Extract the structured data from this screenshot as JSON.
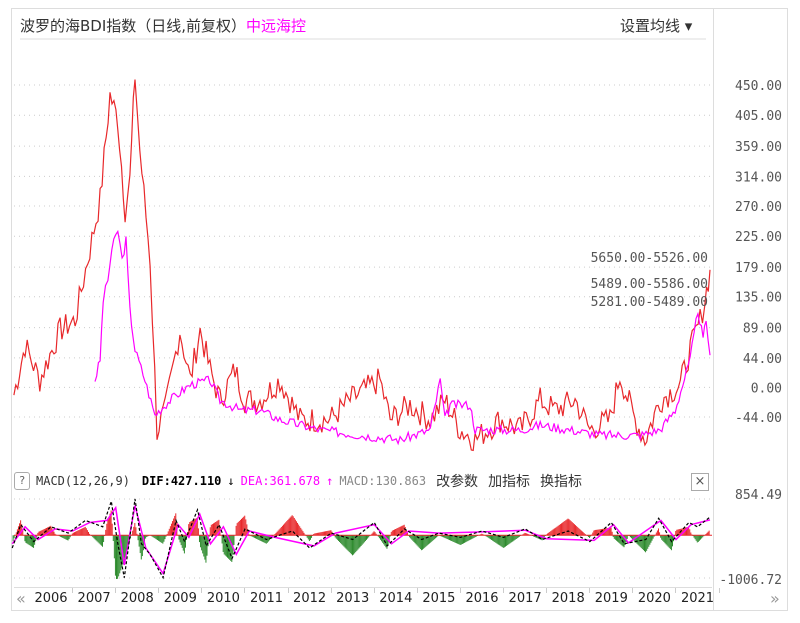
{
  "header": {
    "title": "波罗的海BDI指数（日线,前复权）",
    "stock": "中远海控",
    "settings": "设置均线 ▾"
  },
  "colors": {
    "bdi": "#e8282b",
    "stock": "#ff00ff",
    "up": "#e8282b",
    "down": "#2e8b2e",
    "negative_label": "#009900"
  },
  "chart_data": [
    {
      "type": "line",
      "title": "波罗的海BDI指数 vs 中远海控",
      "yticks": [
        "450.00",
        "405.00",
        "359.00",
        "314.00",
        "270.00",
        "225.00",
        "179.00",
        "135.00",
        "89.00",
        "44.00",
        "0.00",
        "-44.00"
      ],
      "ylim": [
        -90,
        480
      ],
      "xlim": [
        2005.1,
        2021.3
      ],
      "annotations": [
        "5650.00-5526.00",
        "5489.00-5586.00",
        "5281.00-5489.00"
      ],
      "series": [
        {
          "name": "波罗的海BDI指数",
          "points": [
            [
              2005.14,
              -11
            ],
            [
              2005.4,
              63
            ],
            [
              2005.74,
              11
            ],
            [
              2006.21,
              85
            ],
            [
              2006.56,
              100
            ],
            [
              2006.9,
              205
            ],
            [
              2007.14,
              279
            ],
            [
              2007.37,
              435
            ],
            [
              2007.55,
              398
            ],
            [
              2007.72,
              264
            ],
            [
              2007.83,
              309
            ],
            [
              2007.95,
              465
            ],
            [
              2008.06,
              353
            ],
            [
              2008.3,
              190
            ],
            [
              2008.46,
              -63
            ],
            [
              2008.65,
              -34
            ],
            [
              2008.99,
              85
            ],
            [
              2009.23,
              11
            ],
            [
              2009.46,
              85
            ],
            [
              2009.69,
              26
            ],
            [
              2009.92,
              -19
            ],
            [
              2010.27,
              26
            ],
            [
              2010.5,
              -19
            ],
            [
              2010.85,
              -19
            ],
            [
              2011.31,
              11
            ],
            [
              2011.78,
              -48
            ],
            [
              2012.47,
              -48
            ],
            [
              2012.94,
              -19
            ],
            [
              2013.63,
              11
            ],
            [
              2013.87,
              -48
            ],
            [
              2014.33,
              -26
            ],
            [
              2014.8,
              -48
            ],
            [
              2015.14,
              -19
            ],
            [
              2015.49,
              -63
            ],
            [
              2015.84,
              -78
            ],
            [
              2016.42,
              -48
            ],
            [
              2016.89,
              -63
            ],
            [
              2017.35,
              -19
            ],
            [
              2017.69,
              -34
            ],
            [
              2018.16,
              -19
            ],
            [
              2018.5,
              -63
            ],
            [
              2018.97,
              -48
            ],
            [
              2019.2,
              18
            ],
            [
              2019.55,
              -48
            ],
            [
              2019.78,
              -78
            ],
            [
              2020.13,
              -19
            ],
            [
              2020.6,
              4
            ],
            [
              2020.83,
              56
            ],
            [
              2021.06,
              100
            ],
            [
              2021.17,
              130
            ],
            [
              2021.29,
              175
            ]
          ]
        },
        {
          "name": "中远海控",
          "points": [
            [
              2007.02,
              11
            ],
            [
              2007.14,
              41
            ],
            [
              2007.21,
              130
            ],
            [
              2007.32,
              160
            ],
            [
              2007.41,
              205
            ],
            [
              2007.55,
              234
            ],
            [
              2007.65,
              190
            ],
            [
              2007.74,
              219
            ],
            [
              2007.83,
              115
            ],
            [
              2007.95,
              56
            ],
            [
              2008.18,
              11
            ],
            [
              2008.41,
              -41
            ],
            [
              2008.76,
              -19
            ],
            [
              2009.23,
              4
            ],
            [
              2009.69,
              11
            ],
            [
              2009.92,
              -19
            ],
            [
              2010.39,
              -34
            ],
            [
              2010.85,
              -34
            ],
            [
              2011.31,
              -48
            ],
            [
              2012.24,
              -63
            ],
            [
              2013.17,
              -71
            ],
            [
              2014.1,
              -78
            ],
            [
              2014.8,
              -63
            ],
            [
              2015.03,
              11
            ],
            [
              2015.14,
              -48
            ],
            [
              2015.26,
              -26
            ],
            [
              2015.72,
              -26
            ],
            [
              2015.84,
              -63
            ],
            [
              2016.89,
              -63
            ],
            [
              2017.35,
              -56
            ],
            [
              2018.04,
              -63
            ],
            [
              2018.74,
              -71
            ],
            [
              2019.67,
              -71
            ],
            [
              2020.13,
              -63
            ],
            [
              2020.48,
              -34
            ],
            [
              2020.83,
              41
            ],
            [
              2021.01,
              115
            ],
            [
              2021.13,
              71
            ],
            [
              2021.2,
              100
            ],
            [
              2021.29,
              48
            ]
          ]
        }
      ]
    },
    {
      "type": "line",
      "title": "MACD(12,26,9)",
      "yticks": [
        "854.49",
        "-1006.72"
      ],
      "ylim": [
        -1006.72,
        854.49
      ],
      "series": [
        {
          "name": "DIF",
          "points": [
            [
              2005.1,
              -300
            ],
            [
              2005.3,
              250
            ],
            [
              2005.6,
              -150
            ],
            [
              2006.0,
              200
            ],
            [
              2006.4,
              50
            ],
            [
              2006.8,
              350
            ],
            [
              2007.2,
              200
            ],
            [
              2007.4,
              800
            ],
            [
              2007.55,
              -200
            ],
            [
              2007.7,
              -1000
            ],
            [
              2007.95,
              854
            ],
            [
              2008.1,
              -200
            ],
            [
              2008.3,
              -450
            ],
            [
              2008.6,
              -1000
            ],
            [
              2008.9,
              350
            ],
            [
              2009.1,
              -150
            ],
            [
              2009.4,
              600
            ],
            [
              2009.6,
              -250
            ],
            [
              2009.9,
              250
            ],
            [
              2010.2,
              -550
            ],
            [
              2010.5,
              150
            ],
            [
              2011.0,
              -100
            ],
            [
              2011.6,
              100
            ],
            [
              2012.0,
              -300
            ],
            [
              2012.5,
              50
            ],
            [
              2013.0,
              -100
            ],
            [
              2013.5,
              300
            ],
            [
              2013.8,
              -250
            ],
            [
              2014.2,
              150
            ],
            [
              2014.6,
              -100
            ],
            [
              2015.0,
              50
            ],
            [
              2015.5,
              -50
            ],
            [
              2016.0,
              100
            ],
            [
              2016.5,
              -50
            ],
            [
              2017.0,
              150
            ],
            [
              2017.4,
              -100
            ],
            [
              2018.0,
              100
            ],
            [
              2018.5,
              -150
            ],
            [
              2019.0,
              300
            ],
            [
              2019.3,
              -200
            ],
            [
              2019.8,
              -100
            ],
            [
              2020.1,
              400
            ],
            [
              2020.4,
              -150
            ],
            [
              2020.8,
              300
            ],
            [
              2021.0,
              200
            ],
            [
              2021.29,
              427.11
            ]
          ]
        },
        {
          "name": "DEA",
          "points": [
            [
              2005.1,
              -200
            ],
            [
              2005.4,
              200
            ],
            [
              2005.7,
              -100
            ],
            [
              2006.1,
              150
            ],
            [
              2006.5,
              100
            ],
            [
              2006.9,
              300
            ],
            [
              2007.3,
              350
            ],
            [
              2007.5,
              650
            ],
            [
              2007.7,
              -700
            ],
            [
              2007.95,
              700
            ],
            [
              2008.2,
              -300
            ],
            [
              2008.6,
              -900
            ],
            [
              2008.95,
              250
            ],
            [
              2009.2,
              -50
            ],
            [
              2009.45,
              500
            ],
            [
              2009.7,
              -200
            ],
            [
              2010.0,
              200
            ],
            [
              2010.3,
              -450
            ],
            [
              2010.6,
              100
            ],
            [
              2011.2,
              -50
            ],
            [
              2012.1,
              -250
            ],
            [
              2012.6,
              50
            ],
            [
              2013.5,
              250
            ],
            [
              2013.9,
              -200
            ],
            [
              2014.3,
              100
            ],
            [
              2015.0,
              50
            ],
            [
              2016.0,
              80
            ],
            [
              2017.0,
              120
            ],
            [
              2017.5,
              -80
            ],
            [
              2018.6,
              -120
            ],
            [
              2019.05,
              250
            ],
            [
              2019.4,
              -180
            ],
            [
              2020.15,
              350
            ],
            [
              2020.5,
              -100
            ],
            [
              2020.85,
              250
            ],
            [
              2021.29,
              361.678
            ]
          ]
        }
      ]
    }
  ],
  "macd": {
    "label": "MACD(12,26,9)",
    "dif": "DIF:427.110",
    "dif_arrow": "↓",
    "dea": "DEA:361.678",
    "dea_arrow": "↑",
    "macd": "MACD:130.863",
    "btn_params": "改参数",
    "btn_add": "加指标",
    "btn_switch": "换指标",
    "help": "?",
    "close": "×"
  },
  "xaxis": {
    "years": [
      "2006",
      "2007",
      "2008",
      "2009",
      "2010",
      "2011",
      "2012",
      "2013",
      "2014",
      "2015",
      "2016",
      "2017",
      "2018",
      "2019",
      "2020",
      "2021"
    ],
    "prev": "«",
    "next": "»"
  }
}
